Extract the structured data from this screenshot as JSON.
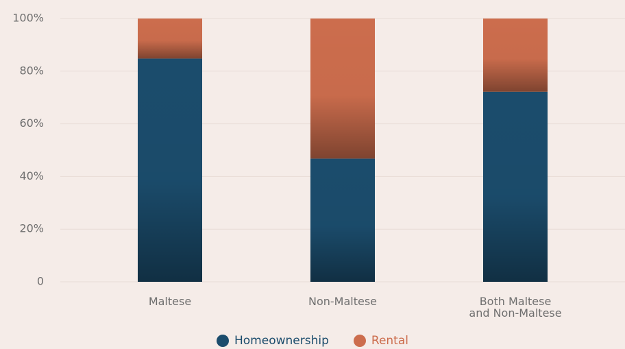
{
  "chart_data": {
    "type": "stacked_bar",
    "categories": [
      "Maltese",
      "Non-Maltese",
      "Both Maltese\nand Non-Maltese"
    ],
    "series": [
      {
        "name": "Homeownership",
        "color": "#1b4c6c",
        "values": [
          84.8,
          46.8,
          72.2
        ]
      },
      {
        "name": "Rental",
        "color": "#cc6d4d",
        "values": [
          15.2,
          53.2,
          27.8
        ]
      }
    ],
    "ylim": [
      0,
      100
    ],
    "yticks": [
      0,
      {
        "value": 20,
        "label": "20%"
      },
      {
        "value": 40,
        "label": "40%"
      },
      {
        "value": 60,
        "label": "60%"
      },
      {
        "value": 80,
        "label": "80%"
      },
      {
        "value": 100,
        "label": "100%"
      }
    ],
    "grid": true,
    "legend": "bottom"
  }
}
